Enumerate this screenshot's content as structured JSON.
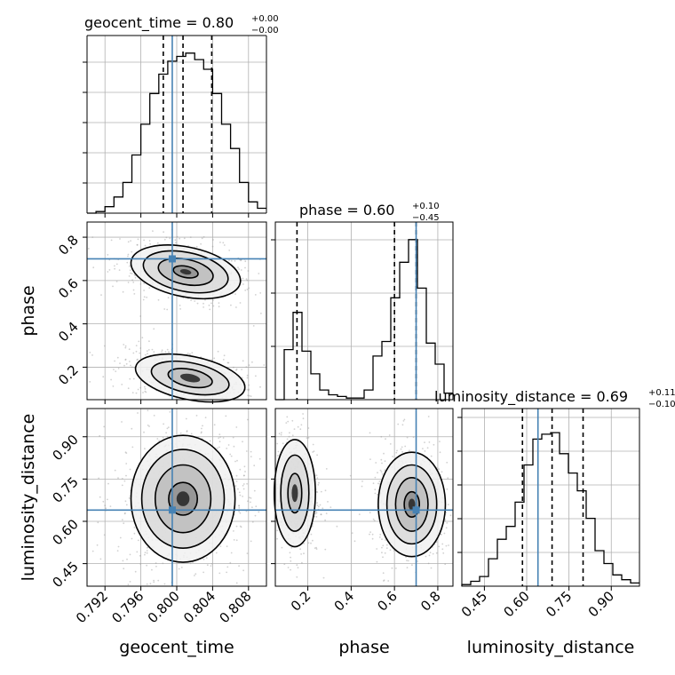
{
  "colors": {
    "truth": "#4682b4",
    "line": "#000000",
    "grid": "#b0b0b0",
    "scatter": "#9a9a9a"
  },
  "chart_data": [
    {
      "type": "histogram",
      "panel": "geocent_time-1d",
      "title_label": "geocent_time = 0.80",
      "title_sup": "+0.00",
      "title_sub": "−0.00",
      "xlim": [
        0.79,
        0.81
      ],
      "xticks": [
        0.792,
        0.796,
        0.8,
        0.804,
        0.808
      ],
      "bin_width": 0.001,
      "truth": 0.7995,
      "quantiles": [
        0.7985,
        0.8007,
        0.8039
      ],
      "bins": [
        [
          0.79,
          0.0
        ],
        [
          0.791,
          0.01
        ],
        [
          0.792,
          0.04
        ],
        [
          0.793,
          0.1
        ],
        [
          0.794,
          0.19
        ],
        [
          0.795,
          0.36
        ],
        [
          0.796,
          0.55
        ],
        [
          0.797,
          0.74
        ],
        [
          0.798,
          0.86
        ],
        [
          0.799,
          0.94
        ],
        [
          0.8,
          0.97
        ],
        [
          0.801,
          0.99
        ],
        [
          0.802,
          0.95
        ],
        [
          0.803,
          0.89
        ],
        [
          0.804,
          0.74
        ],
        [
          0.805,
          0.55
        ],
        [
          0.806,
          0.4
        ],
        [
          0.807,
          0.19
        ],
        [
          0.808,
          0.07
        ],
        [
          0.809,
          0.03
        ]
      ]
    },
    {
      "type": "histogram",
      "panel": "phase-1d",
      "title_label": "phase = 0.60",
      "title_sup": "+0.10",
      "title_sub": "−0.45",
      "xlim": [
        0.05,
        0.87
      ],
      "xticks": [
        0.2,
        0.4,
        0.6,
        0.8
      ],
      "bin_width": 0.041,
      "truth": 0.7,
      "quantiles": [
        0.15,
        0.6,
        0.7
      ],
      "bins": [
        [
          0.05,
          0.0
        ],
        [
          0.091,
          0.31
        ],
        [
          0.132,
          0.54
        ],
        [
          0.173,
          0.3
        ],
        [
          0.214,
          0.16
        ],
        [
          0.255,
          0.06
        ],
        [
          0.296,
          0.03
        ],
        [
          0.337,
          0.02
        ],
        [
          0.378,
          0.01
        ],
        [
          0.419,
          0.01
        ],
        [
          0.46,
          0.06
        ],
        [
          0.501,
          0.27
        ],
        [
          0.542,
          0.36
        ],
        [
          0.583,
          0.63
        ],
        [
          0.624,
          0.85
        ],
        [
          0.665,
          0.99
        ],
        [
          0.706,
          0.69
        ],
        [
          0.747,
          0.35
        ],
        [
          0.788,
          0.22
        ],
        [
          0.829,
          0.04
        ]
      ]
    },
    {
      "type": "histogram",
      "panel": "luminosity_distance-1d",
      "title_label": "luminosity_distance = 0.69",
      "title_sup": "+0.11",
      "title_sub": "−0.10",
      "xlim": [
        0.37,
        1.0
      ],
      "xticks": [
        0.45,
        0.6,
        0.75,
        0.9
      ],
      "bin_width": 0.0315,
      "truth": 0.64,
      "quantiles": [
        0.585,
        0.69,
        0.8
      ],
      "bins": [
        [
          0.37,
          0.01
        ],
        [
          0.4015,
          0.03
        ],
        [
          0.433,
          0.06
        ],
        [
          0.4645,
          0.17
        ],
        [
          0.496,
          0.29
        ],
        [
          0.5275,
          0.37
        ],
        [
          0.559,
          0.52
        ],
        [
          0.5905,
          0.75
        ],
        [
          0.622,
          0.91
        ],
        [
          0.6535,
          0.94
        ],
        [
          0.685,
          0.95
        ],
        [
          0.7165,
          0.82
        ],
        [
          0.748,
          0.7
        ],
        [
          0.7795,
          0.59
        ],
        [
          0.811,
          0.42
        ],
        [
          0.8425,
          0.22
        ],
        [
          0.874,
          0.14
        ],
        [
          0.9055,
          0.07
        ],
        [
          0.937,
          0.04
        ],
        [
          0.9685,
          0.02
        ]
      ]
    },
    {
      "type": "contour",
      "panel": "geocent_time-phase",
      "xlim": [
        0.79,
        0.81
      ],
      "ylim": [
        0.05,
        0.87
      ],
      "yticks": [
        0.2,
        0.4,
        0.6,
        0.8
      ],
      "truth": [
        0.7995,
        0.7
      ],
      "blobs": [
        {
          "cx": 0.801,
          "cy": 0.64,
          "levels": [
            [
              0.0062,
              0.115,
              -0.2
            ],
            [
              0.0048,
              0.09,
              -0.2
            ],
            [
              0.0031,
              0.058,
              -0.2
            ],
            [
              0.0014,
              0.026,
              -0.2
            ]
          ]
        },
        {
          "cx": 0.8015,
          "cy": 0.15,
          "levels": [
            [
              0.0062,
              0.1,
              -0.2
            ],
            [
              0.0044,
              0.07,
              -0.2
            ],
            [
              0.0025,
              0.04,
              -0.2
            ]
          ]
        }
      ]
    },
    {
      "type": "contour",
      "panel": "geocent_time-luminosity_distance",
      "xlim": [
        0.79,
        0.81
      ],
      "ylim": [
        0.37,
        1.0
      ],
      "yticks": [
        0.45,
        0.6,
        0.75,
        0.9
      ],
      "truth": [
        0.7995,
        0.64
      ],
      "blobs": [
        {
          "cx": 0.8007,
          "cy": 0.68,
          "levels": [
            [
              0.0058,
              0.225,
              0.0
            ],
            [
              0.0046,
              0.175,
              0.0
            ],
            [
              0.0031,
              0.12,
              0.0
            ],
            [
              0.0016,
              0.058,
              0.0
            ]
          ]
        }
      ]
    },
    {
      "type": "contour",
      "panel": "phase-luminosity_distance",
      "xlim": [
        0.05,
        0.87
      ],
      "ylim": [
        0.37,
        1.0
      ],
      "truth": [
        0.7,
        0.64
      ],
      "blobs": [
        {
          "cx": 0.14,
          "cy": 0.7,
          "levels": [
            [
              0.095,
              0.19,
              0.0
            ],
            [
              0.065,
              0.135,
              0.0
            ],
            [
              0.032,
              0.07,
              0.0
            ]
          ]
        },
        {
          "cx": 0.68,
          "cy": 0.66,
          "levels": [
            [
              0.155,
              0.185,
              0.0
            ],
            [
              0.115,
              0.14,
              0.0
            ],
            [
              0.075,
              0.095,
              0.0
            ],
            [
              0.035,
              0.045,
              0.0
            ]
          ]
        }
      ]
    }
  ],
  "labels": {
    "x_geocent": "geocent_time",
    "x_phase": "phase",
    "x_lumdist": "luminosity_distance",
    "y_phase": "phase",
    "y_lumdist": "luminosity_distance"
  },
  "ticks": {
    "geocent": [
      "0.792",
      "0.796",
      "0.800",
      "0.804",
      "0.808"
    ],
    "phase": [
      "0.2",
      "0.4",
      "0.6",
      "0.8"
    ],
    "lumdist": [
      "0.45",
      "0.60",
      "0.75",
      "0.90"
    ]
  }
}
